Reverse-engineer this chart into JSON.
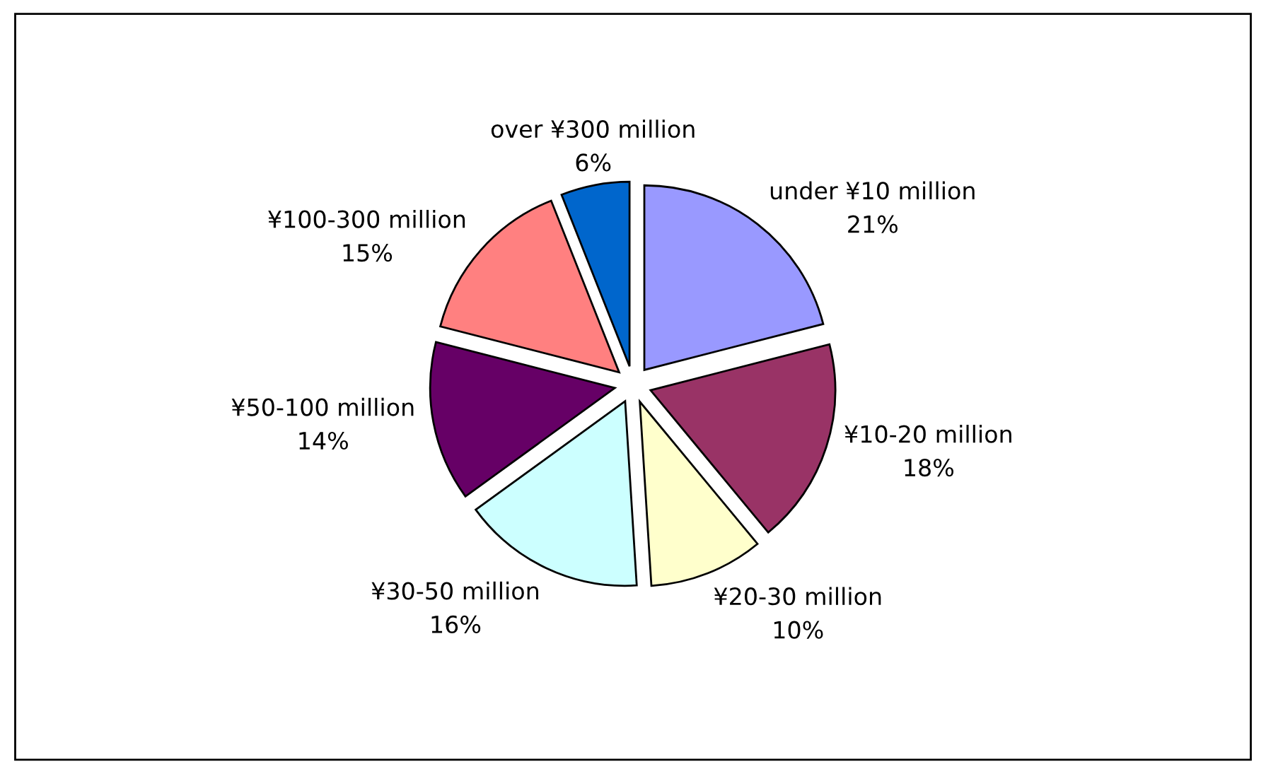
{
  "chart_data": {
    "type": "pie",
    "categories": [
      "under ¥10 million",
      "¥10-20 million",
      "¥20-30 million",
      "¥30-50 million",
      "¥50-100 million",
      "¥100-300 million",
      "over ¥300 million"
    ],
    "values": [
      21,
      18,
      10,
      16,
      14,
      15,
      6
    ],
    "value_labels": [
      "21%",
      "18%",
      "10%",
      "16%",
      "14%",
      "15%",
      "6%"
    ],
    "colors": [
      "#9999ff",
      "#993366",
      "#ffffcc",
      "#ccffff",
      "#660066",
      "#ff8080",
      "#0066cc"
    ],
    "legend": false
  }
}
